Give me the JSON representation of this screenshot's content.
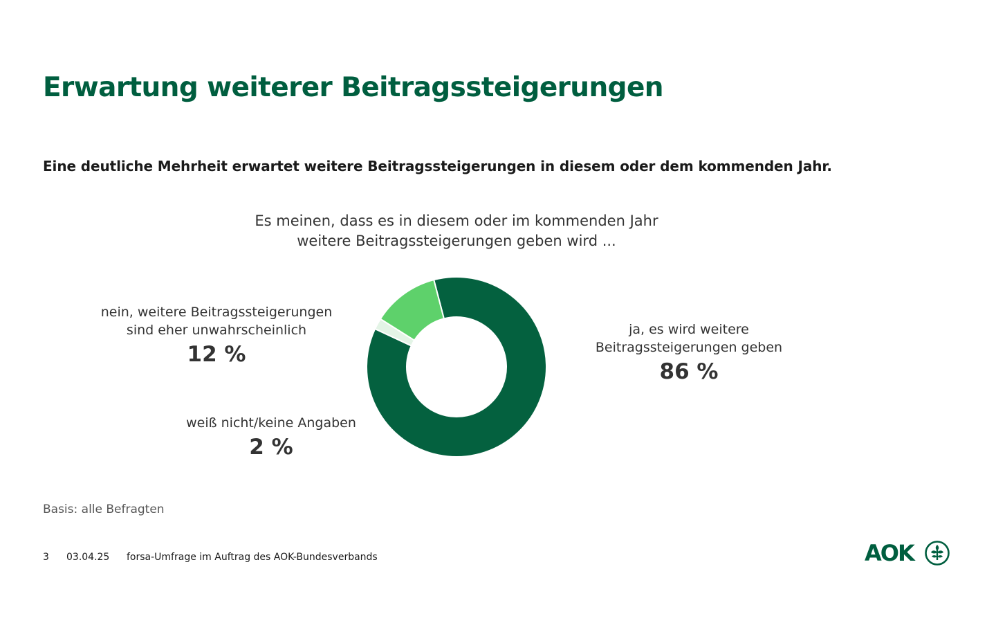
{
  "title": "Erwartung weiterer Beitragssteigerungen",
  "subtitle": "Eine deutliche Mehrheit erwartet weitere Beitragssteigerungen in diesem oder dem kommenden Jahr.",
  "colors": {
    "brand": "#005e3f",
    "ja": "#04613f",
    "nein": "#5ed16b",
    "weiss_nicht": "#e3f4e6",
    "text": "#333333"
  },
  "chart_data": {
    "type": "pie",
    "variant": "donut",
    "title": "Es meinen, dass es in diesem oder im kommenden Jahr weitere Beitragssteigerungen geben wird ...",
    "title_lines": [
      "Es meinen, dass es in diesem oder im kommenden Jahr",
      "weitere Beitragssteigerungen geben wird ..."
    ],
    "unit": "%",
    "slices": [
      {
        "key": "ja",
        "label_lines": [
          "ja, es wird weitere",
          "Beitragssteigerungen geben"
        ],
        "value": 86,
        "display": "86 %",
        "color": "#04613f"
      },
      {
        "key": "weiss_nicht",
        "label_lines": [
          "weiß nicht/keine Angaben"
        ],
        "value": 2,
        "display": "2 %",
        "color": "#e3f4e6"
      },
      {
        "key": "nein",
        "label_lines": [
          "nein, weitere Beitragssteigerungen",
          "sind eher unwahrscheinlich"
        ],
        "value": 12,
        "display": "12 %",
        "color": "#5ed16b"
      }
    ]
  },
  "basis": "Basis: alle Befragten",
  "footer": {
    "page": "3",
    "date": "03.04.25",
    "source": "forsa-Umfrage im Auftrag des AOK-Bundesverbands"
  },
  "logo": {
    "text": "AOK",
    "icon": "aok-tree-emblem-icon"
  }
}
